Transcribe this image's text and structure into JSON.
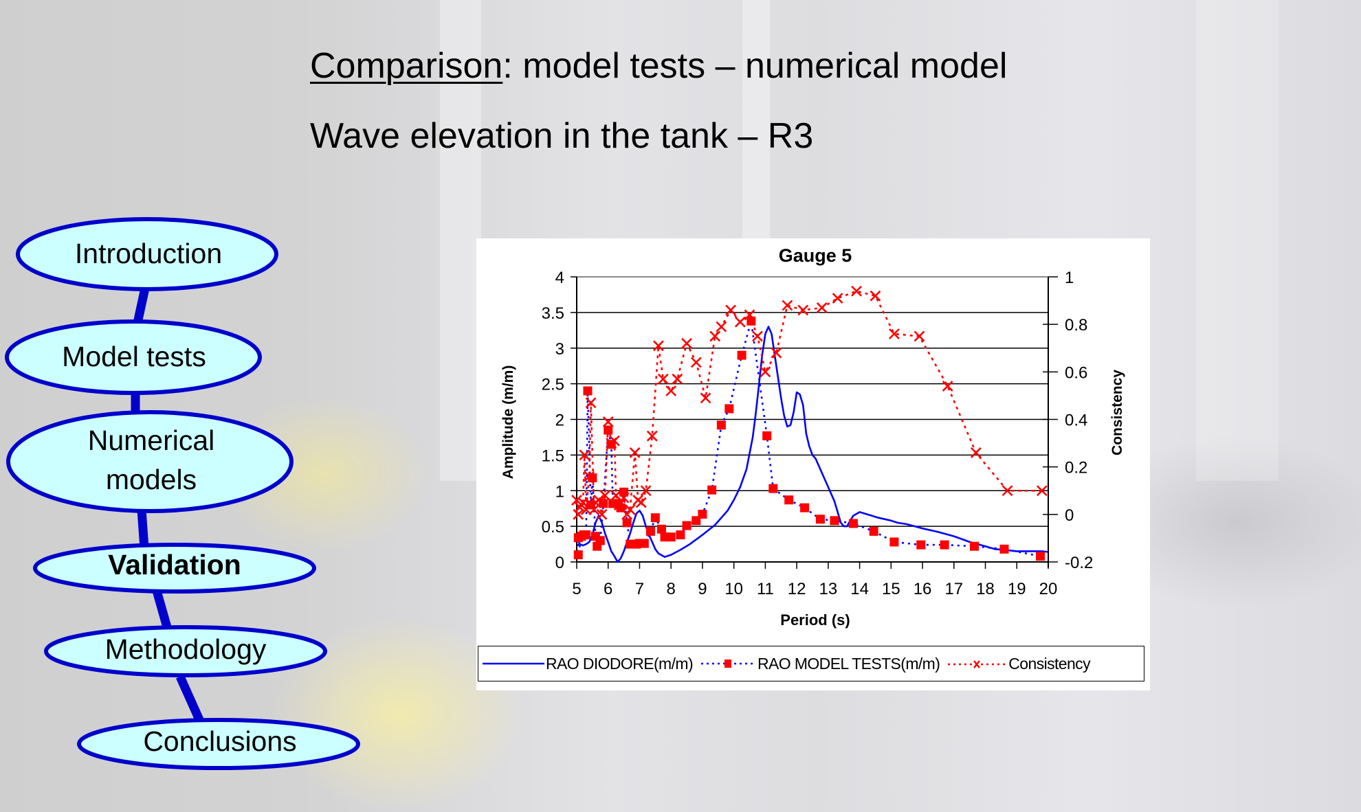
{
  "slide": {
    "title_underlined": "Comparison",
    "title_rest": ": model tests – numerical model",
    "subtitle": "Wave elevation in the tank – R3"
  },
  "nav": {
    "items": [
      {
        "label_lines": [
          "Introduction"
        ],
        "active": false
      },
      {
        "label_lines": [
          "Model tests"
        ],
        "active": false
      },
      {
        "label_lines": [
          "Numerical",
          "models"
        ],
        "active": false
      },
      {
        "label_lines": [
          "Validation"
        ],
        "active": true
      },
      {
        "label_lines": [
          "Methodology"
        ],
        "active": false
      },
      {
        "label_lines": [
          "Conclusions"
        ],
        "active": false
      }
    ],
    "colors": {
      "fill": "#ccffff",
      "border": "#0000cc"
    }
  },
  "chart_data": {
    "type": "line",
    "title": "Gauge 5",
    "xlabel": "Period (s)",
    "ylabel": "Amplitude (m/m)",
    "y2label": "Consistency",
    "xlim": [
      5,
      20
    ],
    "ylim": [
      0,
      4
    ],
    "y2lim": [
      -0.2,
      1
    ],
    "xticks": [
      "5",
      "6",
      "7",
      "8",
      "9",
      "10",
      "11",
      "12",
      "13",
      "14",
      "15",
      "16",
      "17",
      "18",
      "19",
      "20"
    ],
    "yticks": [
      "0",
      "0.5",
      "1",
      "1.5",
      "2",
      "2.5",
      "3",
      "3.5",
      "4"
    ],
    "y2ticks": [
      "-0.2",
      "0",
      "0.2",
      "0.4",
      "0.6",
      "0.8",
      "1"
    ],
    "grid": "horizontal",
    "legend_position": "bottom",
    "series": [
      {
        "name": "RAO DIODORE(m/m)",
        "axis": "left",
        "color": "#0000ff",
        "style": "solid",
        "marker": "none",
        "x": [
          5.0,
          5.1,
          5.2,
          5.3,
          5.4,
          5.5,
          5.6,
          5.7,
          5.8,
          5.9,
          6.0,
          6.1,
          6.2,
          6.3,
          6.4,
          6.5,
          6.6,
          6.7,
          6.8,
          6.9,
          7.0,
          7.1,
          7.2,
          7.3,
          7.4,
          7.5,
          7.6,
          7.8,
          8.0,
          8.3,
          8.6,
          9.0,
          9.4,
          9.8,
          10.0,
          10.2,
          10.4,
          10.6,
          10.7,
          10.8,
          10.9,
          11.0,
          11.1,
          11.2,
          11.3,
          11.4,
          11.5,
          11.6,
          11.7,
          11.8,
          11.9,
          12.0,
          12.1,
          12.2,
          12.3,
          12.4,
          12.5,
          12.6,
          12.8,
          13.0,
          13.2,
          13.4,
          13.5,
          13.6,
          13.7,
          13.8,
          14.0,
          14.3,
          14.6,
          15.0,
          15.2,
          15.5,
          16.0,
          16.5,
          17.0,
          17.5,
          18.0,
          18.3,
          18.6,
          19.0,
          19.4,
          19.8,
          20.0
        ],
        "y": [
          0.32,
          0.25,
          0.23,
          0.25,
          0.28,
          0.38,
          0.55,
          0.65,
          0.55,
          0.4,
          0.28,
          0.15,
          0.08,
          0.0,
          0.05,
          0.15,
          0.28,
          0.4,
          0.55,
          0.68,
          0.72,
          0.65,
          0.5,
          0.38,
          0.28,
          0.18,
          0.12,
          0.07,
          0.1,
          0.17,
          0.25,
          0.38,
          0.52,
          0.72,
          0.87,
          1.05,
          1.3,
          1.75,
          2.1,
          2.5,
          2.9,
          3.2,
          3.3,
          3.2,
          2.9,
          2.6,
          2.3,
          2.05,
          1.9,
          1.92,
          2.1,
          2.38,
          2.35,
          2.2,
          1.8,
          1.62,
          1.5,
          1.45,
          1.25,
          1.05,
          0.85,
          0.55,
          0.5,
          0.5,
          0.58,
          0.65,
          0.7,
          0.66,
          0.62,
          0.58,
          0.55,
          0.53,
          0.47,
          0.42,
          0.36,
          0.28,
          0.22,
          0.18,
          0.17,
          0.15,
          0.15,
          0.15,
          0.14
        ]
      },
      {
        "name": "RAO MODEL TESTS(m/m)",
        "axis": "left",
        "color": "#0000ff",
        "marker_color": "#ff0000",
        "style": "dotted",
        "marker": "square",
        "x": [
          5.05,
          5.05,
          5.15,
          5.22,
          5.3,
          5.35,
          5.45,
          5.5,
          5.6,
          5.65,
          5.75,
          5.85,
          6.0,
          6.1,
          6.15,
          6.3,
          6.4,
          6.5,
          6.6,
          6.7,
          6.9,
          7.0,
          7.15,
          7.35,
          7.5,
          7.7,
          7.8,
          8.0,
          8.3,
          8.5,
          8.8,
          9.0,
          9.3,
          9.6,
          9.85,
          10.25,
          10.55,
          11.05,
          11.25,
          11.75,
          12.25,
          12.75,
          13.2,
          13.8,
          14.45,
          15.1,
          15.95,
          16.7,
          17.65,
          18.6,
          19.75
        ],
        "y": [
          0.34,
          0.1,
          0.36,
          0.38,
          0.38,
          2.4,
          0.8,
          1.18,
          0.36,
          0.22,
          0.3,
          0.82,
          1.85,
          1.65,
          0.82,
          0.82,
          0.76,
          0.98,
          0.55,
          0.25,
          0.25,
          0.26,
          0.26,
          0.43,
          0.62,
          0.46,
          0.35,
          0.35,
          0.38,
          0.51,
          0.58,
          0.67,
          1.01,
          1.92,
          2.15,
          2.9,
          3.38,
          1.77,
          1.03,
          0.87,
          0.76,
          0.6,
          0.58,
          0.54,
          0.43,
          0.28,
          0.24,
          0.24,
          0.22,
          0.18,
          0.08
        ]
      },
      {
        "name": "Consistency",
        "axis": "right",
        "color": "#ff0000",
        "style": "dashed",
        "marker": "x",
        "x": [
          5.0,
          5.05,
          5.1,
          5.2,
          5.25,
          5.3,
          5.4,
          5.45,
          5.55,
          5.6,
          5.7,
          5.8,
          5.9,
          6.0,
          6.1,
          6.2,
          6.25,
          6.35,
          6.5,
          6.6,
          6.7,
          6.85,
          6.95,
          7.05,
          7.2,
          7.4,
          7.6,
          7.75,
          8.0,
          8.2,
          8.5,
          8.8,
          9.1,
          9.4,
          9.6,
          9.9,
          10.2,
          10.5,
          10.75,
          11.0,
          11.35,
          11.7,
          12.2,
          12.8,
          13.3,
          13.9,
          14.5,
          15.1,
          15.9,
          16.8,
          17.7,
          18.7,
          19.8
        ],
        "y": [
          0.06,
          0.0,
          0.03,
          0.05,
          0.25,
          0.02,
          0.16,
          0.47,
          0.02,
          0.05,
          0.06,
          0.0,
          0.08,
          0.39,
          0.3,
          0.31,
          0.08,
          0.04,
          0.07,
          0.0,
          0.02,
          0.26,
          0.06,
          0.05,
          0.1,
          0.33,
          0.71,
          0.57,
          0.52,
          0.57,
          0.72,
          0.64,
          0.49,
          0.75,
          0.79,
          0.86,
          0.81,
          0.84,
          0.75,
          0.6,
          0.68,
          0.88,
          0.86,
          0.87,
          0.91,
          0.94,
          0.92,
          0.76,
          0.75,
          0.54,
          0.26,
          0.1,
          0.1
        ]
      }
    ]
  }
}
